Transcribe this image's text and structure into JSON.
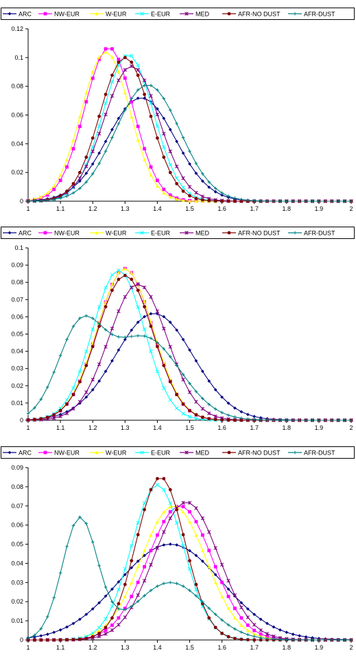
{
  "colors": {
    "ARC": "#000080",
    "NW-EUR": "#ff00ff",
    "W-EUR": "#ffff00",
    "E-EUR": "#00ffff",
    "MED": "#800080",
    "AFR-NO DUST": "#800000",
    "AFR-DUST": "#008080"
  },
  "chart_data": [
    {
      "type": "line",
      "legend_position": "top",
      "grid": false,
      "xlim": [
        1,
        2
      ],
      "ylim": [
        0,
        0.12
      ],
      "x_ticks": [
        "1",
        "1.1",
        "1.2",
        "1.3",
        "1.4",
        "1.5",
        "1.6",
        "1.7",
        "1.8",
        "1.9",
        "2"
      ],
      "y_ticks": [
        "0",
        "0.02",
        "0.04",
        "0.06",
        "0.08",
        "0.1",
        "0.12"
      ],
      "series": [
        {
          "name": "ARC",
          "marker": "diamond",
          "mu": 1.35,
          "sigma": 0.105,
          "peak": 0.072
        },
        {
          "name": "NW-EUR",
          "marker": "square",
          "mu": 1.25,
          "sigma": 0.075,
          "peak": 0.107
        },
        {
          "name": "W-EUR",
          "marker": "triangle",
          "mu": 1.24,
          "sigma": 0.075,
          "peak": 0.104
        },
        {
          "name": "E-EUR",
          "marker": "x",
          "mu": 1.31,
          "sigma": 0.078,
          "peak": 0.102
        },
        {
          "name": "MED",
          "marker": "asterisk",
          "mu": 1.32,
          "sigma": 0.085,
          "peak": 0.094
        },
        {
          "name": "AFR-NO DUST",
          "marker": "circle",
          "mu": 1.3,
          "sigma": 0.078,
          "peak": 0.1
        },
        {
          "name": "AFR-DUST",
          "marker": "plus",
          "mu": 1.37,
          "sigma": 0.1,
          "peak": 0.081
        }
      ]
    },
    {
      "type": "line",
      "legend_position": "top",
      "grid": false,
      "xlim": [
        1,
        2
      ],
      "ylim": [
        0,
        0.1
      ],
      "x_ticks": [
        "1",
        "1.1",
        "1.2",
        "1.3",
        "1.4",
        "1.5",
        "1.6",
        "1.7",
        "1.8",
        "1.9",
        "2"
      ],
      "y_ticks": [
        "0",
        "0.01",
        "0.02",
        "0.03",
        "0.04",
        "0.05",
        "0.06",
        "0.07",
        "0.08",
        "0.09",
        "0.1"
      ],
      "series": [
        {
          "name": "ARC",
          "marker": "diamond",
          "mu": 1.39,
          "sigma": 0.12,
          "peak": 0.062
        },
        {
          "name": "NW-EUR",
          "marker": "square",
          "mu": 1.3,
          "sigma": 0.085,
          "peak": 0.088
        },
        {
          "name": "W-EUR",
          "marker": "triangle",
          "mu": 1.3,
          "sigma": 0.086,
          "peak": 0.088
        },
        {
          "name": "E-EUR",
          "marker": "x",
          "mu": 1.28,
          "sigma": 0.08,
          "peak": 0.087
        },
        {
          "name": "MED",
          "marker": "asterisk",
          "mu": 1.34,
          "sigma": 0.09,
          "peak": 0.079
        },
        {
          "name": "AFR-NO DUST",
          "marker": "circle",
          "mu": 1.3,
          "sigma": 0.086,
          "peak": 0.084
        },
        {
          "name": "AFR-DUST",
          "marker": "plus",
          "mu": 1.16,
          "sigma": 0.07,
          "peak": 0.05,
          "mu2": 1.36,
          "sigma2": 0.11,
          "peak2": 0.048
        }
      ]
    },
    {
      "type": "line",
      "legend_position": "top",
      "grid": false,
      "xlim": [
        1,
        2
      ],
      "ylim": [
        0,
        0.09
      ],
      "x_ticks": [
        "1",
        "1.1",
        "1.2",
        "1.3",
        "1.4",
        "1.5",
        "1.6",
        "1.7",
        "1.8",
        "1.9",
        "2"
      ],
      "y_ticks": [
        "0",
        "0.01",
        "0.02",
        "0.03",
        "0.04",
        "0.05",
        "0.06",
        "0.07",
        "0.08",
        "0.09"
      ],
      "series": [
        {
          "name": "ARC",
          "marker": "diamond",
          "mu": 1.44,
          "sigma": 0.16,
          "peak": 0.05
        },
        {
          "name": "NW-EUR",
          "marker": "square",
          "mu": 1.47,
          "sigma": 0.1,
          "peak": 0.07
        },
        {
          "name": "W-EUR",
          "marker": "triangle",
          "mu": 1.45,
          "sigma": 0.1,
          "peak": 0.07
        },
        {
          "name": "E-EUR",
          "marker": "x",
          "mu": 1.4,
          "sigma": 0.08,
          "peak": 0.081
        },
        {
          "name": "MED",
          "marker": "asterisk",
          "mu": 1.49,
          "sigma": 0.1,
          "peak": 0.072
        },
        {
          "name": "AFR-NO DUST",
          "marker": "circle",
          "mu": 1.41,
          "sigma": 0.075,
          "peak": 0.085
        },
        {
          "name": "AFR-DUST",
          "marker": "plus",
          "mu": 1.16,
          "sigma": 0.055,
          "peak": 0.063,
          "mu2": 1.44,
          "sigma2": 0.11,
          "peak2": 0.03
        }
      ]
    }
  ]
}
